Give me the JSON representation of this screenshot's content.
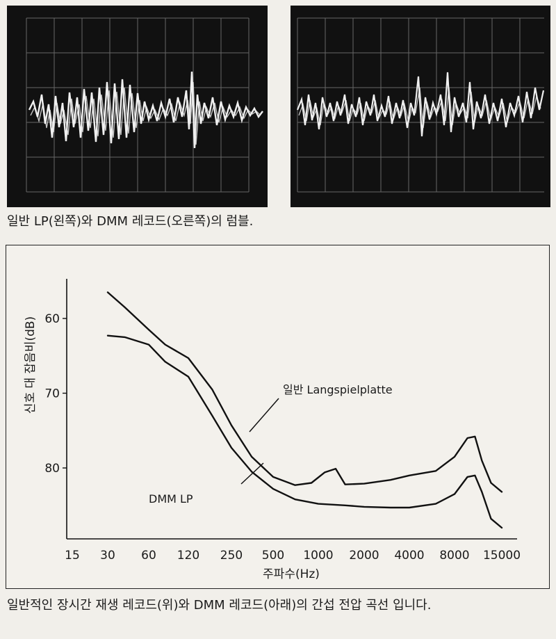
{
  "captions": {
    "top": "일반 LP(왼쪽)와 DMM 레코드(오른쪽)의 럼블.",
    "bottom": "일반적인 장시간 재생 레코드(위)와 DMM 레코드(아래)의 간섭 전압 곡선 입니다."
  },
  "colors": {
    "scope_bg": "#111111",
    "scope_grid": "#9a9a9a",
    "scope_trace": "#f2f2f2",
    "curve": "#111111"
  },
  "chart_data": {
    "type": "line",
    "title": "",
    "xlabel": "주파수(Hz)",
    "ylabel": "신호 대 잡음비(dB)",
    "x_scale": "log",
    "x_ticks": [
      "15",
      "30",
      "60",
      "120",
      "250",
      "500",
      "1000",
      "2000",
      "4000",
      "8000",
      "15000"
    ],
    "y_ticks": [
      "60",
      "70",
      "80"
    ],
    "y_inverted": true,
    "ylim": [
      55,
      92
    ],
    "series": [
      {
        "name": "일반 Langspielplatte",
        "x": [
          30,
          40,
          60,
          80,
          120,
          180,
          250,
          350,
          500,
          700,
          900,
          1100,
          1300,
          1500,
          2000,
          3000,
          4000,
          6000,
          8000,
          9500,
          10500,
          11500,
          13000,
          15000
        ],
        "y": [
          56.5,
          58.5,
          61.5,
          63.5,
          65.3,
          69.5,
          74.3,
          78.5,
          81.2,
          82.3,
          82.0,
          80.6,
          80.1,
          82.2,
          82.1,
          81.6,
          81.0,
          80.4,
          78.5,
          76.0,
          75.8,
          79.0,
          82.0,
          83.2
        ]
      },
      {
        "name": "DMM LP",
        "x": [
          30,
          40,
          60,
          80,
          120,
          180,
          250,
          350,
          500,
          700,
          1000,
          1500,
          2000,
          3000,
          4000,
          6000,
          8000,
          9500,
          10500,
          11500,
          13000,
          15000
        ],
        "y": [
          62.3,
          62.5,
          63.5,
          65.8,
          67.8,
          73.0,
          77.3,
          80.5,
          82.8,
          84.2,
          84.8,
          85.0,
          85.2,
          85.3,
          85.3,
          84.8,
          83.5,
          81.2,
          81.0,
          83.2,
          86.8,
          88.0
        ]
      }
    ]
  }
}
